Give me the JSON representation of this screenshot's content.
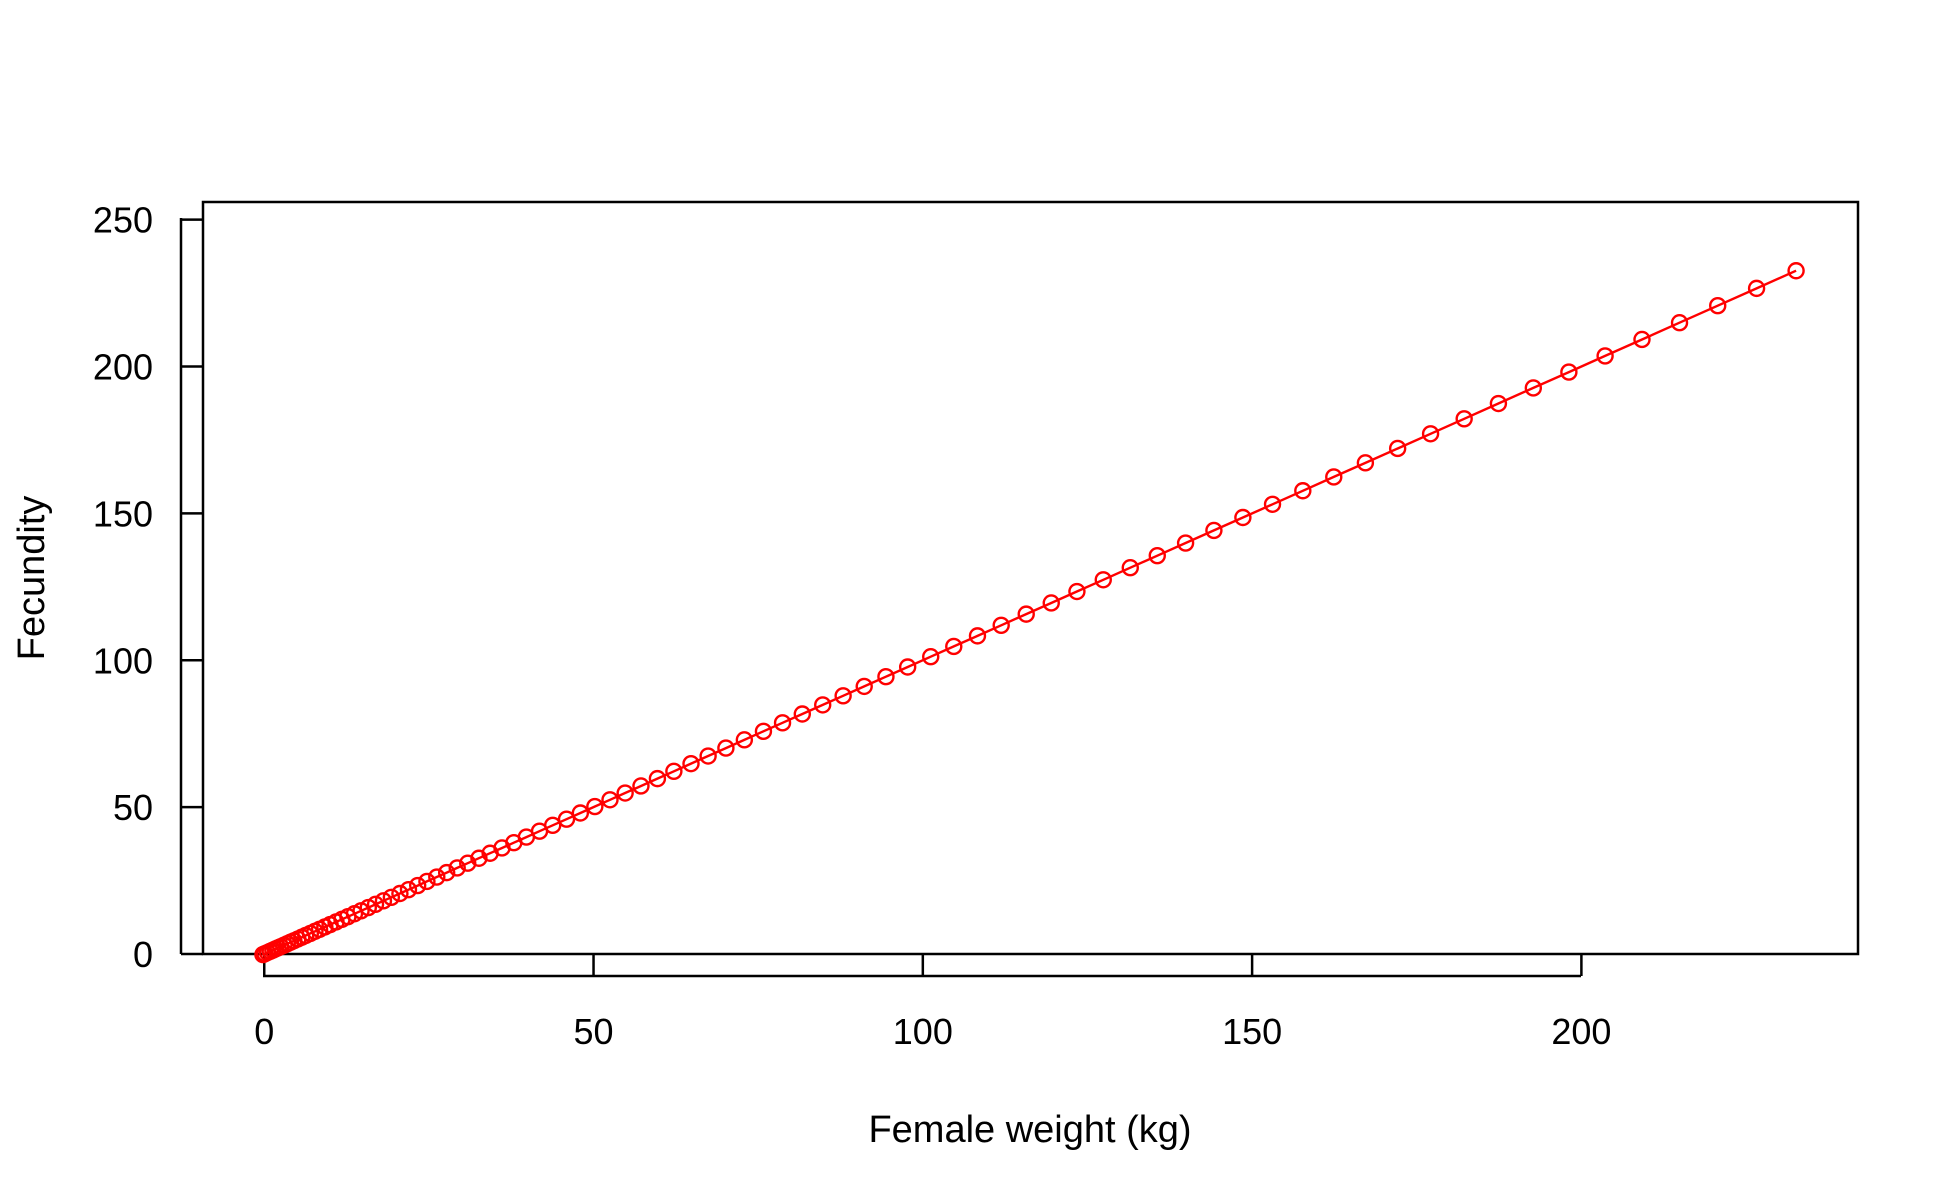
{
  "chart_data": {
    "type": "line",
    "title": "",
    "xlabel": "Female weight (kg)",
    "ylabel": "Fecundity",
    "xlim": [
      -9.3,
      242.0
    ],
    "ylim": [
      0,
      256
    ],
    "x_ticks": [
      0,
      50,
      100,
      150,
      200
    ],
    "y_ticks": [
      0,
      50,
      100,
      150,
      200,
      250
    ],
    "x_tick_labels": [
      "0",
      "50",
      "100",
      "150",
      "200"
    ],
    "y_tick_labels": [
      "0",
      "50",
      "100",
      "150",
      "200",
      "250"
    ],
    "grid": false,
    "legend": "none",
    "series_color": "#ff0000",
    "marker": "open-circle",
    "series": [
      {
        "x": [
          -0.2,
          0.1,
          0.5,
          0.9,
          1.3,
          1.7,
          2.1,
          2.5,
          3.0,
          3.5,
          4.0,
          4.5,
          5.1,
          5.7,
          6.3,
          7.0,
          7.7,
          8.4,
          9.2,
          10.0,
          10.9,
          11.8,
          12.7,
          13.7,
          14.7,
          15.8,
          16.9,
          18.1,
          19.3,
          20.6,
          21.9,
          23.3,
          24.7,
          26.2,
          27.7,
          29.3,
          30.9,
          32.6,
          34.3,
          36.1,
          37.9,
          39.8,
          41.8,
          43.8,
          45.9,
          48.0,
          50.2,
          52.5,
          54.8,
          57.2,
          59.7,
          62.2,
          64.8,
          67.4,
          70.1,
          72.9,
          75.8,
          78.7,
          81.7,
          84.8,
          87.9,
          91.1,
          94.4,
          97.7,
          101.2,
          104.7,
          108.3,
          111.9,
          115.7,
          119.5,
          123.4,
          127.4,
          131.5,
          135.6,
          139.9,
          144.2,
          148.6,
          153.1,
          157.7,
          162.4,
          167.2,
          172.1,
          177.1,
          182.2,
          187.4,
          192.7,
          198.1,
          203.6,
          209.2,
          214.9,
          220.7,
          226.6,
          232.6
        ],
        "y": [
          -0.2,
          0.1,
          0.5,
          0.9,
          1.3,
          1.7,
          2.1,
          2.5,
          3.0,
          3.5,
          4.0,
          4.5,
          5.1,
          5.7,
          6.3,
          7.0,
          7.7,
          8.4,
          9.2,
          10.0,
          10.9,
          11.8,
          12.7,
          13.7,
          14.7,
          15.8,
          16.9,
          18.1,
          19.3,
          20.6,
          21.9,
          23.3,
          24.7,
          26.2,
          27.7,
          29.3,
          30.9,
          32.6,
          34.3,
          36.1,
          37.9,
          39.8,
          41.8,
          43.8,
          45.9,
          48.0,
          50.2,
          52.5,
          54.8,
          57.2,
          59.7,
          62.2,
          64.8,
          67.4,
          70.1,
          72.9,
          75.8,
          78.7,
          81.7,
          84.8,
          87.9,
          91.1,
          94.4,
          97.7,
          101.2,
          104.7,
          108.3,
          111.9,
          115.7,
          119.5,
          123.4,
          127.4,
          131.5,
          135.6,
          139.9,
          144.2,
          148.6,
          153.1,
          157.7,
          162.4,
          167.2,
          172.1,
          177.1,
          182.2,
          187.4,
          192.7,
          198.1,
          203.6,
          209.2,
          214.9,
          220.7,
          226.6,
          232.6
        ]
      }
    ]
  }
}
